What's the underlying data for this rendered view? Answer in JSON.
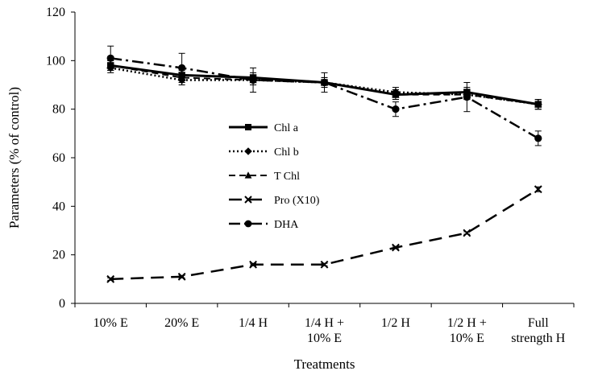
{
  "chart_data": {
    "type": "line",
    "title": "",
    "xlabel": "Treatments",
    "ylabel": "Parameters (% of control)",
    "ylim": [
      0,
      120
    ],
    "yticks": [
      0,
      20,
      40,
      60,
      80,
      100,
      120
    ],
    "grid": false,
    "legend_position": "center-left",
    "categories": [
      [
        "10% E"
      ],
      [
        "20% E"
      ],
      [
        "1/4 H"
      ],
      [
        "1/4 H +",
        "10% E"
      ],
      [
        "1/2 H"
      ],
      [
        "1/2 H +",
        "10% E"
      ],
      [
        "Full",
        "strength H"
      ]
    ],
    "series": [
      {
        "name": "Chl a",
        "marker": "square",
        "dash": "solid",
        "width": 3,
        "values": [
          98,
          94,
          93,
          91,
          86,
          87,
          82
        ],
        "errors": [
          2,
          2,
          2,
          2,
          2,
          2,
          2
        ]
      },
      {
        "name": "Chl b",
        "marker": "diamond",
        "dash": "dotted",
        "width": 2.5,
        "values": [
          97,
          92,
          92,
          91,
          87,
          86,
          82
        ],
        "errors": [
          2,
          2,
          2,
          2,
          2,
          2,
          2
        ]
      },
      {
        "name": "T Chl",
        "marker": "triangle",
        "dash": "dashed",
        "width": 2,
        "values": [
          98,
          93,
          92,
          91,
          86,
          86,
          82
        ],
        "errors": [
          2,
          2,
          2,
          2,
          2,
          2,
          2
        ]
      },
      {
        "name": "Pro (X10)",
        "marker": "x",
        "dash": "longdash",
        "width": 2.5,
        "values": [
          10,
          11,
          16,
          16,
          23,
          29,
          47
        ],
        "errors": [
          0.5,
          0.5,
          0.5,
          0.5,
          0.5,
          0.5,
          1
        ]
      },
      {
        "name": "DHA",
        "marker": "circle",
        "dash": "dashdot",
        "width": 2.5,
        "values": [
          101,
          97,
          92,
          91,
          80,
          85,
          68
        ],
        "errors": [
          5,
          6,
          5,
          4,
          3,
          6,
          3
        ]
      }
    ],
    "colors": {
      "ink": "#000000",
      "background": "#ffffff"
    }
  }
}
